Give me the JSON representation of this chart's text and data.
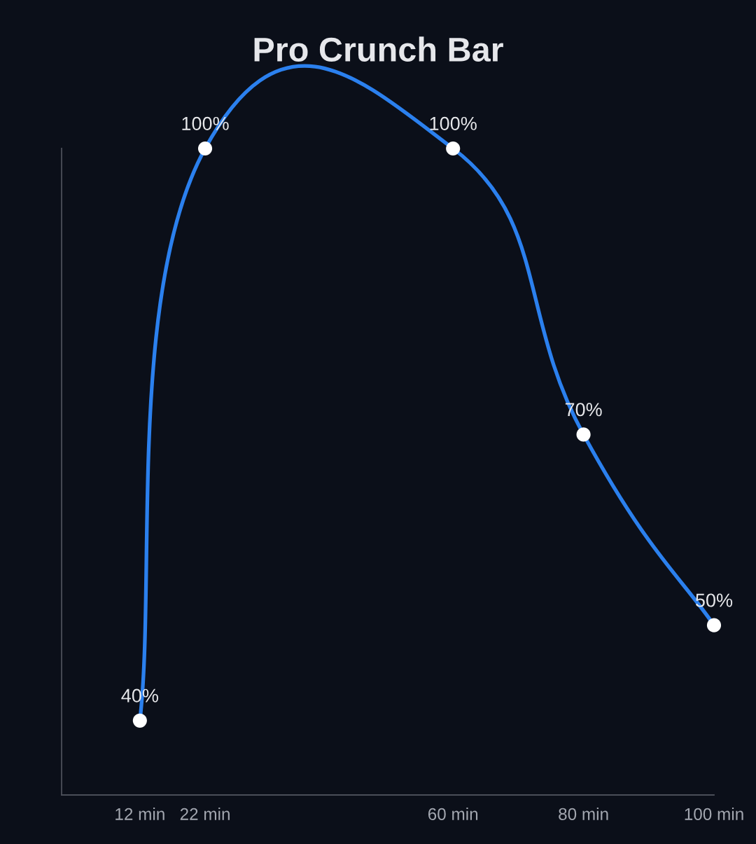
{
  "chart_data": {
    "type": "line",
    "title": "Pro Crunch Bar",
    "x": [
      12,
      22,
      60,
      80,
      100
    ],
    "series": [
      {
        "color": "#2b80ee",
        "values": [
          40,
          100,
          100,
          70,
          50
        ],
        "value_labels": [
          "40%",
          "100%",
          "100%",
          "70%",
          "50%"
        ]
      }
    ],
    "xlim": [
      0,
      100
    ],
    "xticks": [
      {
        "value": 12,
        "label": "12 min"
      },
      {
        "value": 22,
        "label": "22 min"
      },
      {
        "value": 60,
        "label": "60 min"
      },
      {
        "value": 80,
        "label": "80 min"
      },
      {
        "value": 100,
        "label": "100 min"
      }
    ],
    "tick_labels": "x",
    "marker": "circle"
  }
}
